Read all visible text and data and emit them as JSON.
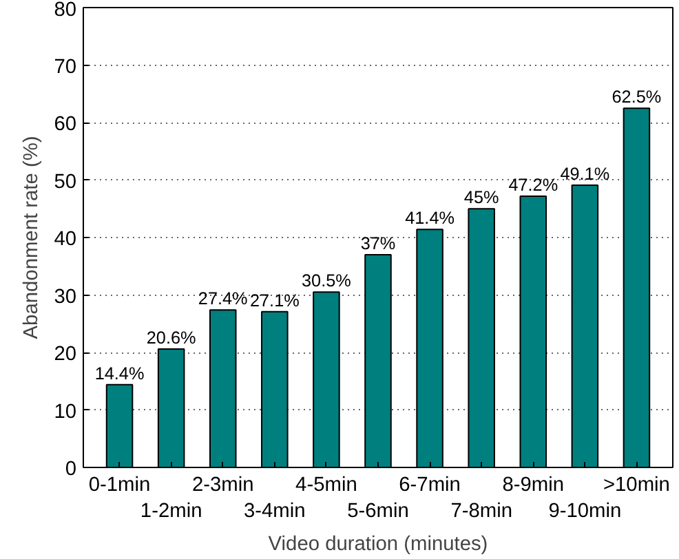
{
  "chart_data": {
    "type": "bar",
    "xlabel": "Video duration (minutes)",
    "ylabel": "Abandonment rate (%)",
    "categories": [
      "0-1min",
      "1-2min",
      "2-3min",
      "3-4min",
      "4-5min",
      "5-6min",
      "6-7min",
      "7-8min",
      "8-9min",
      "9-10min",
      ">10min"
    ],
    "values": [
      14.4,
      20.6,
      27.4,
      27.1,
      30.5,
      37,
      41.4,
      45,
      47.2,
      49.1,
      62.5
    ],
    "value_labels": [
      "14.4%",
      "20.6%",
      "27.4%",
      "27.1%",
      "30.5%",
      "37%",
      "41.4%",
      "45%",
      "47.2%",
      "49.1%",
      "62.5%"
    ],
    "color": "#007f7f",
    "ylim": [
      0,
      80
    ],
    "yticks": [
      0,
      10,
      20,
      30,
      40,
      50,
      60,
      70,
      80
    ],
    "grid": "y"
  }
}
